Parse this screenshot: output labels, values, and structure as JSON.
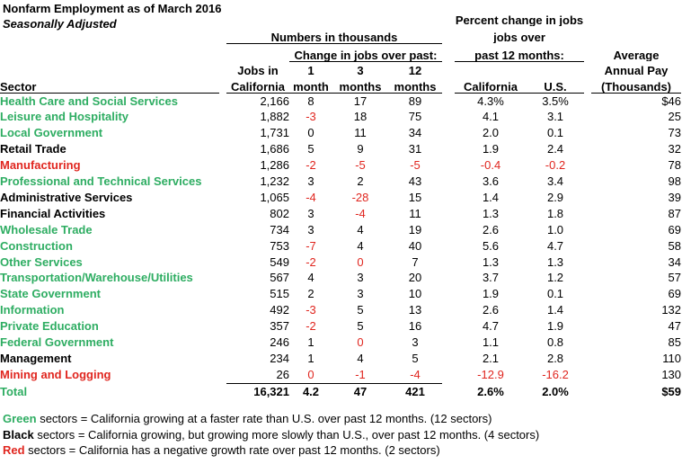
{
  "title": "Nonfarm Employment as of March 2016",
  "subtitle": "Seasonally Adjusted",
  "colors": {
    "green": "#2ead62",
    "red": "#e0261f",
    "black": "#000000"
  },
  "header": {
    "numbers_group": "Numbers in thousands",
    "change_group": "Change in jobs over past:",
    "percent_line1": "Percent change in jobs",
    "percent_line2": "jobs over",
    "percent_line3": "past 12 months:",
    "pay_line1": "Average",
    "pay_line2": "Annual Pay",
    "pay_line3": "(Thousands)",
    "sector": "Sector",
    "jobs_line1": "Jobs in",
    "jobs_line2": "California",
    "m1_line1": "1",
    "m1_line2": "month",
    "m3_line1": "3",
    "m3_line2": "months",
    "m12_line1": "12",
    "m12_line2": "months",
    "ca": "California",
    "us": "U.S."
  },
  "table": {
    "rows": [
      {
        "sector": "Health Care and Social Services",
        "color": "green",
        "cells": [
          {
            "t": "2,166"
          },
          {
            "t": "8"
          },
          {
            "t": "17"
          },
          {
            "t": "89"
          },
          {
            "t": "4.3%"
          },
          {
            "t": "3.5%"
          },
          {
            "t": "$46"
          }
        ]
      },
      {
        "sector": "Leisure and Hospitality",
        "color": "green",
        "cells": [
          {
            "t": "1,882"
          },
          {
            "t": "-3",
            "red": true
          },
          {
            "t": "18"
          },
          {
            "t": "75"
          },
          {
            "t": "4.1"
          },
          {
            "t": "3.1"
          },
          {
            "t": "25"
          }
        ]
      },
      {
        "sector": "Local Government",
        "color": "green",
        "cells": [
          {
            "t": "1,731"
          },
          {
            "t": "0"
          },
          {
            "t": "11"
          },
          {
            "t": "34"
          },
          {
            "t": "2.0"
          },
          {
            "t": "0.1"
          },
          {
            "t": "73"
          }
        ]
      },
      {
        "sector": "Retail Trade",
        "color": "black",
        "cells": [
          {
            "t": "1,686"
          },
          {
            "t": "5"
          },
          {
            "t": "9"
          },
          {
            "t": "31"
          },
          {
            "t": "1.9"
          },
          {
            "t": "2.4"
          },
          {
            "t": "32"
          }
        ]
      },
      {
        "sector": "Manufacturing",
        "color": "red",
        "cells": [
          {
            "t": "1,286"
          },
          {
            "t": "-2",
            "red": true
          },
          {
            "t": "-5",
            "red": true
          },
          {
            "t": "-5",
            "red": true
          },
          {
            "t": "-0.4",
            "red": true
          },
          {
            "t": "-0.2",
            "red": true
          },
          {
            "t": "78"
          }
        ]
      },
      {
        "sector": "Professional and Technical Services",
        "color": "green",
        "cells": [
          {
            "t": "1,232"
          },
          {
            "t": "3"
          },
          {
            "t": "2"
          },
          {
            "t": "43"
          },
          {
            "t": "3.6"
          },
          {
            "t": "3.4"
          },
          {
            "t": "98"
          }
        ]
      },
      {
        "sector": "Administrative Services",
        "color": "black",
        "cells": [
          {
            "t": "1,065"
          },
          {
            "t": "-4",
            "red": true
          },
          {
            "t": "-28",
            "red": true
          },
          {
            "t": "15"
          },
          {
            "t": "1.4"
          },
          {
            "t": "2.9"
          },
          {
            "t": "39"
          }
        ]
      },
      {
        "sector": "Financial Activities",
        "color": "black",
        "cells": [
          {
            "t": "802"
          },
          {
            "t": "3"
          },
          {
            "t": "-4",
            "red": true
          },
          {
            "t": "11"
          },
          {
            "t": "1.3"
          },
          {
            "t": "1.8"
          },
          {
            "t": "87"
          }
        ]
      },
      {
        "sector": "Wholesale Trade",
        "color": "green",
        "cells": [
          {
            "t": "734"
          },
          {
            "t": "3"
          },
          {
            "t": "4"
          },
          {
            "t": "19"
          },
          {
            "t": "2.6"
          },
          {
            "t": "1.0"
          },
          {
            "t": "69"
          }
        ]
      },
      {
        "sector": "Construction",
        "color": "green",
        "cells": [
          {
            "t": "753"
          },
          {
            "t": "-7",
            "red": true
          },
          {
            "t": "4"
          },
          {
            "t": "40"
          },
          {
            "t": "5.6"
          },
          {
            "t": "4.7"
          },
          {
            "t": "58"
          }
        ]
      },
      {
        "sector": "Other Services",
        "color": "green",
        "cells": [
          {
            "t": "549"
          },
          {
            "t": "-2",
            "red": true
          },
          {
            "t": "0",
            "red": true
          },
          {
            "t": "7"
          },
          {
            "t": "1.3"
          },
          {
            "t": "1.3"
          },
          {
            "t": "34"
          }
        ]
      },
      {
        "sector": "Transportation/Warehouse/Utilities",
        "color": "green",
        "cells": [
          {
            "t": "567"
          },
          {
            "t": "4"
          },
          {
            "t": "3"
          },
          {
            "t": "20"
          },
          {
            "t": "3.7"
          },
          {
            "t": "1.2"
          },
          {
            "t": "57"
          }
        ]
      },
      {
        "sector": "State Government",
        "color": "green",
        "cells": [
          {
            "t": "515"
          },
          {
            "t": "2"
          },
          {
            "t": "3"
          },
          {
            "t": "10"
          },
          {
            "t": "1.9"
          },
          {
            "t": "0.1"
          },
          {
            "t": "69"
          }
        ]
      },
      {
        "sector": "Information",
        "color": "green",
        "cells": [
          {
            "t": "492"
          },
          {
            "t": "-3",
            "red": true
          },
          {
            "t": "5"
          },
          {
            "t": "13"
          },
          {
            "t": "2.6"
          },
          {
            "t": "1.4"
          },
          {
            "t": "132"
          }
        ]
      },
      {
        "sector": "Private Education",
        "color": "green",
        "cells": [
          {
            "t": "357"
          },
          {
            "t": "-2",
            "red": true
          },
          {
            "t": "5"
          },
          {
            "t": "16"
          },
          {
            "t": "4.7"
          },
          {
            "t": "1.9"
          },
          {
            "t": "47"
          }
        ]
      },
      {
        "sector": "Federal Government",
        "color": "green",
        "cells": [
          {
            "t": "246"
          },
          {
            "t": "1"
          },
          {
            "t": "0",
            "red": true
          },
          {
            "t": "3"
          },
          {
            "t": "1.1"
          },
          {
            "t": "0.8"
          },
          {
            "t": "85"
          }
        ]
      },
      {
        "sector": "Management",
        "color": "black",
        "cells": [
          {
            "t": "234"
          },
          {
            "t": "1"
          },
          {
            "t": "4"
          },
          {
            "t": "5"
          },
          {
            "t": "2.1"
          },
          {
            "t": "2.8"
          },
          {
            "t": "110"
          }
        ]
      },
      {
        "sector": "Mining and Logging",
        "color": "red",
        "underline": true,
        "cells": [
          {
            "t": "26"
          },
          {
            "t": "0",
            "red": true
          },
          {
            "t": "-1",
            "red": true
          },
          {
            "t": "-4",
            "red": true
          },
          {
            "t": "-12.9",
            "red": true
          },
          {
            "t": "-16.2",
            "red": true
          },
          {
            "t": "130"
          }
        ]
      }
    ],
    "total": {
      "label": "Total",
      "jobs": "16,321",
      "m1": "4.2",
      "m3": "47",
      "m12": "421",
      "ca": "2.6%",
      "us": "2.0%",
      "pay": "$59"
    }
  },
  "footnotes": [
    {
      "lead": "Green",
      "text": " sectors = California growing at a faster rate than U.S. over past 12 months. (12 sectors)"
    },
    {
      "lead": "Black",
      "text": " sectors = California growing, but growing more slowly than U.S., over past 12 months. (4 sectors)"
    },
    {
      "lead": "Red",
      "text": " sectors = California has a negative growth rate over past 12 months. (2 sectors)"
    }
  ]
}
